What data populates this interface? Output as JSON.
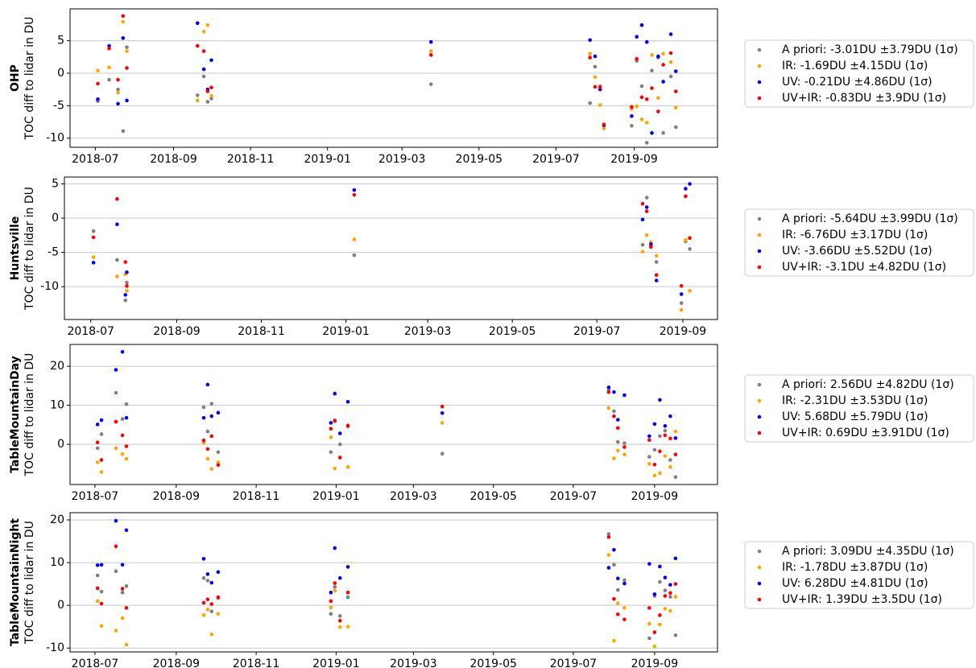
{
  "chart_data": [
    {
      "type": "scatter",
      "ylabel_station": "OHP",
      "ylabel": "TOC diff to lidar in DU",
      "xlim": [
        "2018-06-11",
        "2019-11-06"
      ],
      "xticks": [
        "2018-07",
        "2018-09",
        "2018-11",
        "2019-01",
        "2019-03",
        "2019-05",
        "2019-07",
        "2019-09"
      ],
      "ylim": [
        -11.4,
        9.9
      ],
      "yticks": [
        -10,
        -5,
        0,
        5
      ],
      "grid": true,
      "legend": "outside right",
      "x": [
        "2018-07-03",
        "2018-07-12",
        "2018-07-19",
        "2018-07-23",
        "2018-07-26",
        "2018-09-20",
        "2018-09-25",
        "2018-09-28",
        "2018-10-01",
        "2019-03-24",
        "2019-07-28",
        "2019-08-01",
        "2019-08-05",
        "2019-08-08",
        "2019-08-30",
        "2019-09-03",
        "2019-09-07",
        "2019-09-11",
        "2019-09-15",
        "2019-09-20",
        "2019-09-24",
        "2019-09-30",
        "2019-10-04"
      ],
      "series": [
        {
          "name": "A priori: -3.01DU ±3.79DU (1σ)",
          "color": "#808080",
          "values": [
            -4.3,
            -1.0,
            -2.5,
            -8.9,
            4.0,
            -3.4,
            -0.5,
            -4.4,
            -3.9,
            -1.7,
            -4.6,
            1.0,
            -2.0,
            -8.1,
            -8.1,
            1.9,
            -2.0,
            -10.7,
            0.4,
            2.4,
            -9.2,
            -0.5,
            -8.3
          ]
        },
        {
          "name": "IR: -1.69DU ±4.15DU (1σ)",
          "color": "#ffa500",
          "values": [
            0.4,
            0.9,
            -3.0,
            7.9,
            3.4,
            -4.2,
            6.4,
            7.4,
            -3.5,
            3.4,
            3.0,
            -0.6,
            -4.9,
            -8.5,
            -5.5,
            -5.1,
            -7.1,
            -7.6,
            2.8,
            -3.8,
            3.0,
            1.7,
            -5.3
          ]
        },
        {
          "name": "UV: -0.21DU ±4.86DU (1σ)",
          "color": "#0000ff",
          "values": [
            -4.0,
            4.2,
            -4.7,
            5.4,
            -4.2,
            7.7,
            0.6,
            -2.5,
            2.0,
            4.8,
            5.1,
            2.6,
            -2.5,
            -8.0,
            -6.6,
            5.6,
            7.4,
            4.8,
            -9.2,
            2.6,
            -1.3,
            6.0,
            0.3
          ]
        },
        {
          "name": "UV+IR: -0.83DU ±3.9DU (1σ)",
          "color": "#ff0000",
          "values": [
            -1.6,
            3.8,
            -1.0,
            8.8,
            0.8,
            4.2,
            3.4,
            -2.8,
            -2.2,
            2.8,
            2.4,
            -2.1,
            -2.2,
            -7.9,
            -5.2,
            2.2,
            -3.7,
            -4.0,
            -2.3,
            -5.9,
            1.3,
            3.1,
            -2.8
          ]
        }
      ]
    },
    {
      "type": "scatter",
      "ylabel_station": "Huntsville",
      "ylabel": "TOC diff to lidar in DU",
      "xlim": [
        "2018-06-12",
        "2019-09-26"
      ],
      "xticks": [
        "2018-07",
        "2018-09",
        "2018-11",
        "2019-01",
        "2019-03",
        "2019-05",
        "2019-07",
        "2019-09"
      ],
      "ylim": [
        -14.8,
        6
      ],
      "yticks": [
        -10,
        -5,
        0,
        5
      ],
      "grid": true,
      "legend": "outside right",
      "x": [
        "2018-07-03",
        "2018-07-20",
        "2018-07-26",
        "2018-07-27",
        "2019-01-07",
        "2019-08-03",
        "2019-08-06",
        "2019-08-09",
        "2019-08-13",
        "2019-08-31",
        "2019-09-03",
        "2019-09-06"
      ],
      "series": [
        {
          "name": "A priori: -5.64DU ±3.99DU (1σ)",
          "color": "#808080",
          "values": [
            -1.9,
            -6.1,
            -12.0,
            -9.4,
            -5.4,
            -3.9,
            3.0,
            -4.0,
            -6.4,
            -12.4,
            -3.4,
            -4.5
          ]
        },
        {
          "name": "IR: -6.76DU ±3.17DU (1σ)",
          "color": "#ffa500",
          "values": [
            -5.7,
            -8.5,
            -8.2,
            -10.6,
            -3.1,
            -4.9,
            -2.5,
            -3.5,
            -5.5,
            -13.4,
            -3.2,
            -10.6
          ]
        },
        {
          "name": "UV: -3.66DU ±5.52DU (1σ)",
          "color": "#0000ff",
          "values": [
            -6.5,
            -0.9,
            -11.2,
            -7.9,
            4.1,
            -0.2,
            1.6,
            -3.8,
            -9.1,
            -11.1,
            4.3,
            5.0
          ]
        },
        {
          "name": "UV+IR: -3.1DU ±4.82DU (1σ)",
          "color": "#ff0000",
          "values": [
            -2.8,
            2.8,
            -6.4,
            -9.9,
            3.4,
            2.1,
            1.0,
            -4.2,
            -8.3,
            -9.9,
            3.2,
            -2.9
          ]
        }
      ]
    },
    {
      "type": "scatter",
      "ylabel_station": "TableMountainDay",
      "ylabel": "TOC diff to lidar in DU",
      "xlim": [
        "2018-06-12",
        "2019-10-19"
      ],
      "xticks": [
        "2018-07",
        "2018-09",
        "2018-11",
        "2019-01",
        "2019-03",
        "2019-05",
        "2019-07",
        "2019-09"
      ],
      "ylim": [
        -10.3,
        25.6
      ],
      "yticks": [
        0,
        10,
        20
      ],
      "grid": true,
      "legend": "outside right",
      "x": [
        "2018-07-03",
        "2018-07-06",
        "2018-07-17",
        "2018-07-22",
        "2018-07-25",
        "2018-09-22",
        "2018-09-25",
        "2018-09-28",
        "2018-10-03",
        "2018-12-28",
        "2018-12-31",
        "2019-01-04",
        "2019-01-10",
        "2019-03-23",
        "2019-07-28",
        "2019-08-01",
        "2019-08-04",
        "2019-08-09",
        "2019-08-28",
        "2019-09-01",
        "2019-09-05",
        "2019-09-09",
        "2019-09-13",
        "2019-09-17"
      ],
      "series": [
        {
          "name": "A priori: 2.56DU ±4.82DU (1σ)",
          "color": "#808080",
          "values": [
            -1.0,
            2.6,
            13.2,
            6.5,
            10.3,
            9.5,
            3.3,
            10.4,
            -2.0,
            -2.0,
            5.9,
            0.0,
            4.6,
            -2.4,
            14.0,
            8.5,
            0.6,
            0.3,
            -3.2,
            -1.4,
            2.1,
            3.5,
            -4.0,
            -8.4
          ]
        },
        {
          "name": "IR: -2.31DU ±3.53DU (1σ)",
          "color": "#ffa500",
          "values": [
            -4.6,
            -7.1,
            -1.0,
            -2.5,
            -3.7,
            0.4,
            -3.7,
            -6.3,
            -4.6,
            1.8,
            -6.2,
            -3.4,
            -5.8,
            5.5,
            9.3,
            -3.6,
            -1.6,
            -2.6,
            -5.0,
            -8.0,
            -7.4,
            -3.0,
            -5.8,
            3.3
          ]
        },
        {
          "name": "UV: 5.68DU ±5.79DU (1σ)",
          "color": "#0000ff",
          "values": [
            5.1,
            6.2,
            19.1,
            23.7,
            6.8,
            6.8,
            15.3,
            7.2,
            8.1,
            5.5,
            13.0,
            2.8,
            10.9,
            8.0,
            14.6,
            13.4,
            6.3,
            12.6,
            2.1,
            5.2,
            11.4,
            4.7,
            7.2,
            1.6
          ]
        },
        {
          "name": "UV+IR: 0.69DU ±3.91DU (1σ)",
          "color": "#ff0000",
          "values": [
            0.5,
            -4.0,
            5.8,
            2.3,
            -0.5,
            1.0,
            -1.2,
            2.1,
            -5.3,
            4.0,
            6.1,
            -3.4,
            4.8,
            9.7,
            13.4,
            7.2,
            4.2,
            -0.7,
            1.1,
            -5.2,
            -1.8,
            2.3,
            1.5,
            -2.6
          ]
        }
      ]
    },
    {
      "type": "scatter",
      "ylabel_station": "TableMountainNight",
      "ylabel": "TOC diff to lidar in DU",
      "xlim": [
        "2018-06-12",
        "2019-10-19"
      ],
      "xticks": [
        "2018-07",
        "2018-09",
        "2018-11",
        "2019-01",
        "2019-03",
        "2019-05",
        "2019-07",
        "2019-09"
      ],
      "ylim": [
        -10.9,
        21.7
      ],
      "yticks": [
        -10,
        0,
        10,
        20
      ],
      "grid": true,
      "legend": "outside right",
      "x": [
        "2018-07-03",
        "2018-07-06",
        "2018-07-17",
        "2018-07-22",
        "2018-07-25",
        "2018-09-22",
        "2018-09-25",
        "2018-09-28",
        "2018-10-03",
        "2018-12-28",
        "2018-12-31",
        "2019-01-04",
        "2019-01-10",
        "2019-07-28",
        "2019-08-01",
        "2019-08-04",
        "2019-08-09",
        "2019-08-28",
        "2019-09-01",
        "2019-09-05",
        "2019-09-09",
        "2019-09-13",
        "2019-09-17"
      ],
      "series": [
        {
          "name": "A priori: 3.09DU ±4.35DU (1σ)",
          "color": "#808080",
          "values": [
            7.0,
            3.2,
            8.0,
            3.0,
            4.5,
            6.4,
            5.8,
            -1.4,
            1.7,
            -2.0,
            4.3,
            -2.5,
            1.9,
            16.7,
            9.5,
            3.6,
            5.9,
            -7.7,
            2.2,
            5.5,
            3.5,
            2.0,
            -7.0
          ]
        },
        {
          "name": "IR: -1.78DU ±3.87DU (1σ)",
          "color": "#ffa500",
          "values": [
            1.0,
            -4.8,
            -5.9,
            -3.0,
            -9.2,
            -2.3,
            -1.0,
            -6.8,
            -2.0,
            -0.5,
            3.4,
            -5.1,
            -5.0,
            11.8,
            -8.3,
            0.5,
            -0.6,
            -4.3,
            -9.6,
            -4.5,
            -0.8,
            -1.3,
            2.0
          ]
        },
        {
          "name": "UV: 6.28DU ±4.81DU (1σ)",
          "color": "#0000ff",
          "values": [
            9.4,
            9.5,
            19.8,
            9.5,
            17.6,
            10.9,
            7.3,
            5.3,
            7.8,
            3.0,
            13.4,
            6.4,
            9.0,
            8.8,
            13.0,
            6.3,
            5.1,
            9.7,
            2.6,
            9.1,
            6.5,
            4.8,
            11.0
          ]
        },
        {
          "name": "UV+IR: 1.39DU ±3.5DU (1σ)",
          "color": "#ff0000",
          "values": [
            4.0,
            0.4,
            13.8,
            3.9,
            -0.6,
            0.6,
            1.4,
            0.3,
            1.9,
            1.0,
            5.2,
            -3.6,
            3.0,
            16.0,
            1.5,
            -2.1,
            -3.3,
            -0.6,
            -6.3,
            -2.3,
            2.2,
            2.9,
            5.0
          ]
        }
      ]
    }
  ]
}
